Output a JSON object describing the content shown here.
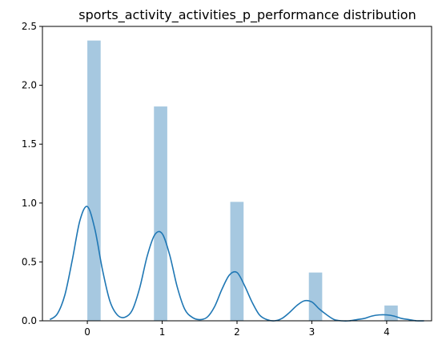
{
  "chart_data": {
    "type": "bar",
    "title": "sports_activity_activities_p_performance distribution",
    "xlabel": "",
    "ylabel": "",
    "xlim": [
      -0.6,
      4.6
    ],
    "ylim": [
      0,
      2.5
    ],
    "xticks": [
      0,
      1,
      2,
      3,
      4
    ],
    "yticks": [
      0.0,
      0.5,
      1.0,
      1.5,
      2.0,
      2.5
    ],
    "xtick_labels": [
      "0",
      "1",
      "2",
      "3",
      "4"
    ],
    "ytick_labels": [
      "0.0",
      "0.5",
      "1.0",
      "1.5",
      "2.0",
      "2.5"
    ],
    "grid": false,
    "histogram": {
      "name": "",
      "color": "#a6c8e0",
      "bin_width": 0.178,
      "bins": [
        {
          "start": 0.0,
          "value": 2.38
        },
        {
          "start": 0.89,
          "value": 1.82
        },
        {
          "start": 1.91,
          "value": 1.01
        },
        {
          "start": 2.96,
          "value": 0.41
        },
        {
          "start": 3.97,
          "value": 0.13
        }
      ]
    },
    "kde": {
      "name": "",
      "color": "#1f77b4",
      "x": [
        -0.5,
        -0.4,
        -0.3,
        -0.2,
        -0.1,
        0.0,
        0.1,
        0.2,
        0.3,
        0.4,
        0.5,
        0.6,
        0.7,
        0.8,
        0.9,
        1.0,
        1.1,
        1.2,
        1.3,
        1.4,
        1.5,
        1.6,
        1.7,
        1.8,
        1.9,
        2.0,
        2.1,
        2.2,
        2.3,
        2.4,
        2.5,
        2.6,
        2.7,
        2.8,
        2.9,
        3.0,
        3.1,
        3.2,
        3.3,
        3.4,
        3.5,
        3.6,
        3.7,
        3.8,
        3.9,
        4.0,
        4.1,
        4.2,
        4.3,
        4.4,
        4.5
      ],
      "y": [
        0.01,
        0.06,
        0.22,
        0.52,
        0.85,
        0.97,
        0.78,
        0.44,
        0.17,
        0.05,
        0.03,
        0.09,
        0.28,
        0.55,
        0.73,
        0.74,
        0.56,
        0.29,
        0.1,
        0.03,
        0.01,
        0.03,
        0.12,
        0.27,
        0.39,
        0.41,
        0.3,
        0.16,
        0.05,
        0.01,
        0.0,
        0.02,
        0.07,
        0.13,
        0.17,
        0.16,
        0.1,
        0.05,
        0.01,
        0.0,
        0.0,
        0.01,
        0.02,
        0.04,
        0.05,
        0.05,
        0.04,
        0.02,
        0.01,
        0.0,
        0.0
      ]
    }
  }
}
